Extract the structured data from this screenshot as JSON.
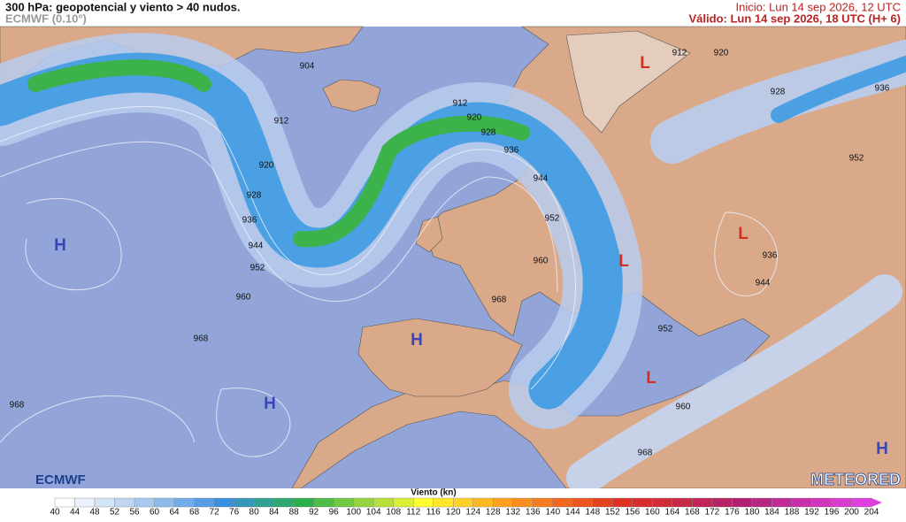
{
  "header": {
    "title": "300 hPa: geopotencial y viento > 40 nudos.",
    "model": "ECMWF (0.10°)",
    "init": "Inicio: Lun 14 sep 2026, 12 UTC",
    "valid": "Válido: Lun 14 sep 2026, 18 UTC (H+ 6)"
  },
  "map": {
    "contour_labels": [
      904,
      912,
      920,
      928,
      936,
      944,
      952,
      960,
      968,
      968,
      912,
      920,
      928,
      936,
      944,
      952,
      960,
      968,
      912,
      920,
      928,
      936,
      952,
      936,
      944,
      952,
      960,
      968
    ],
    "pressure_centers": [
      "H",
      "H",
      "H",
      "H",
      "L",
      "L",
      "L",
      "L"
    ]
  },
  "legend": {
    "title": "Viento (kn)",
    "ticks": [
      40,
      44,
      48,
      52,
      56,
      60,
      64,
      68,
      72,
      76,
      80,
      84,
      88,
      92,
      96,
      100,
      104,
      108,
      112,
      116,
      120,
      124,
      128,
      132,
      136,
      140,
      144,
      148,
      152,
      156,
      160,
      164,
      168,
      172,
      176,
      180,
      184,
      188,
      192,
      196,
      200,
      204
    ]
  },
  "logos": {
    "left": "ECMWF",
    "right": "METEORED"
  }
}
